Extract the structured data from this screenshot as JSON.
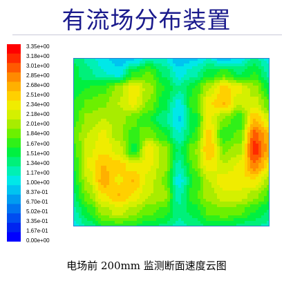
{
  "title": "有流场分布装置",
  "caption": "电场前 200mm 监测断面速度云图",
  "chart_data": {
    "type": "heatmap",
    "legend_labels": [
      "3.35e+00",
      "3.18e+00",
      "3.01e+00",
      "2.85e+00",
      "2.68e+00",
      "2.51e+00",
      "2.34e+00",
      "2.18e+00",
      "2.01e+00",
      "1.84e+00",
      "1.67e+00",
      "1.51e+00",
      "1.34e+00",
      "1.17e+00",
      "1.00e+00",
      "8.37e-01",
      "6.70e-01",
      "5.02e-01",
      "3.35e-01",
      "1.67e-01",
      "0.00e+00"
    ],
    "value_range": [
      0,
      3.35
    ],
    "legend_placement": "left",
    "colors": [
      "#ff0000",
      "#ff2a00",
      "#ff5a00",
      "#ff8a00",
      "#ffb000",
      "#ffd000",
      "#f0ec00",
      "#d4f000",
      "#a8ec00",
      "#6cf000",
      "#30f018",
      "#00f040",
      "#00f07a",
      "#00f0b4",
      "#00e8e8",
      "#00c4f0",
      "#009cf0",
      "#0074f0",
      "#004cf0",
      "#0024f0",
      "#0000ff"
    ],
    "grid": false,
    "field_samples": [
      [
        1.4,
        1.2,
        1.0,
        0.8,
        0.9,
        1.2,
        1.1,
        0.8,
        0.9,
        1.1,
        0.8,
        1.0,
        1.3,
        1.0
      ],
      [
        1.5,
        1.3,
        1.1,
        1.0,
        1.6,
        1.8,
        1.4,
        1.0,
        1.2,
        1.5,
        1.7,
        1.4,
        1.6,
        1.2
      ],
      [
        1.5,
        1.6,
        1.7,
        2.0,
        2.4,
        2.0,
        1.6,
        1.3,
        1.6,
        2.1,
        2.5,
        2.3,
        2.0,
        1.5
      ],
      [
        1.6,
        1.8,
        1.9,
        2.1,
        2.3,
        1.9,
        1.5,
        1.0,
        1.7,
        2.4,
        2.6,
        2.1,
        2.2,
        1.8
      ],
      [
        1.7,
        2.0,
        2.1,
        2.0,
        1.8,
        1.6,
        1.3,
        0.9,
        1.5,
        2.3,
        1.9,
        1.6,
        2.6,
        2.2
      ],
      [
        1.8,
        2.1,
        2.3,
        2.0,
        1.7,
        1.9,
        1.6,
        1.1,
        1.6,
        2.5,
        1.6,
        1.8,
        3.0,
        2.6
      ],
      [
        1.7,
        2.2,
        2.4,
        2.2,
        1.5,
        2.4,
        2.0,
        1.4,
        1.9,
        2.6,
        1.9,
        2.0,
        3.2,
        2.7
      ],
      [
        1.6,
        2.3,
        2.6,
        2.5,
        2.3,
        2.3,
        2.0,
        1.2,
        1.8,
        2.4,
        2.1,
        2.3,
        2.9,
        2.4
      ],
      [
        1.5,
        2.1,
        2.7,
        2.4,
        2.6,
        2.2,
        1.9,
        1.0,
        1.6,
        2.1,
        2.4,
        2.4,
        2.4,
        2.0
      ],
      [
        1.4,
        1.9,
        2.4,
        2.6,
        2.4,
        2.1,
        2.0,
        1.2,
        1.7,
        2.0,
        2.2,
        2.2,
        2.0,
        1.7
      ],
      [
        1.2,
        1.6,
        2.0,
        2.2,
        2.0,
        1.8,
        1.7,
        1.3,
        1.5,
        1.8,
        1.9,
        1.8,
        1.6,
        1.4
      ],
      [
        1.0,
        1.3,
        1.6,
        1.7,
        1.6,
        1.5,
        1.4,
        1.2,
        1.3,
        1.5,
        1.5,
        1.4,
        1.3,
        1.2
      ]
    ]
  }
}
